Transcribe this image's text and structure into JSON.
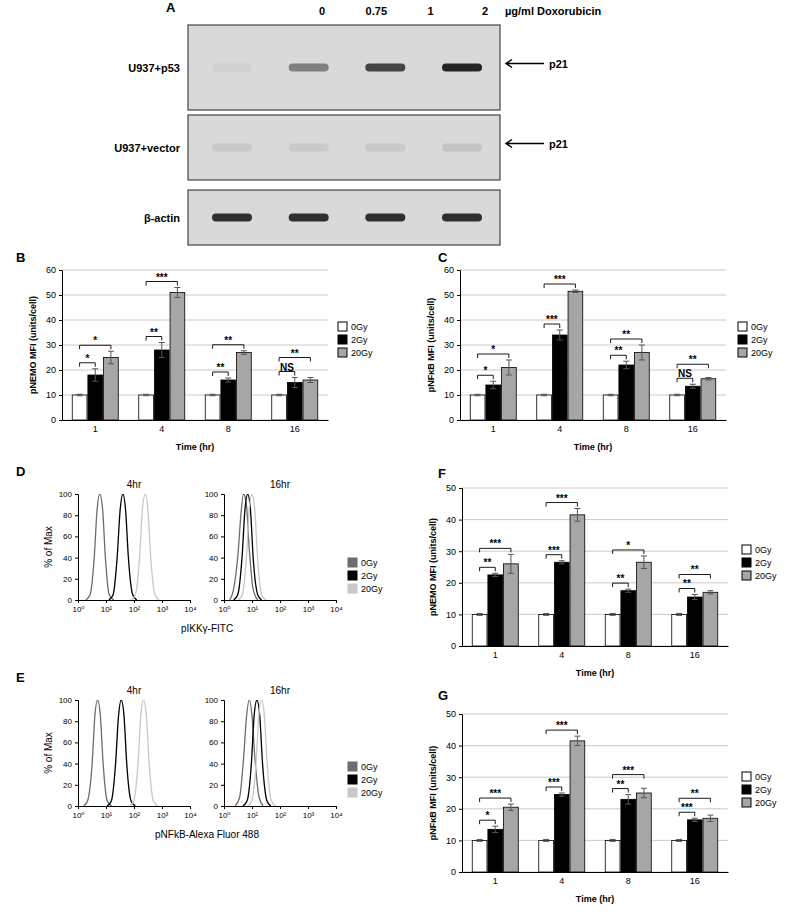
{
  "chart_data": [
    {
      "type": "blot",
      "title": "A",
      "categories": [
        "0",
        "0.75",
        "1",
        "2"
      ],
      "xlabel": "µg/ml Doxorubicin",
      "ylim": [
        0,
        1
      ],
      "series": [
        {
          "name": "U937+p53",
          "values": [
            0.04,
            0.45,
            0.75,
            0.9
          ]
        },
        {
          "name": "U937+vector",
          "values": [
            0.08,
            0.08,
            0.08,
            0.1
          ]
        },
        {
          "name": "β-actin",
          "values": [
            0.85,
            0.85,
            0.85,
            0.85
          ]
        }
      ],
      "annotations": [
        {
          "text": "p21",
          "row": "U937+p53"
        },
        {
          "text": "p21",
          "row": "U937+vector"
        }
      ]
    },
    {
      "type": "bar",
      "title": "B",
      "ylabel": "pNEMO MFI (units/cell)",
      "xlabel": "Time (hr)",
      "categories": [
        "1",
        "4",
        "8",
        "16"
      ],
      "ylim": [
        0,
        60
      ],
      "yticks": [
        0,
        10,
        20,
        30,
        40,
        50,
        60
      ],
      "grid": true,
      "legend": "right",
      "series": [
        {
          "name": "0Gy",
          "color": "#ffffff",
          "values": [
            10,
            10,
            10,
            10
          ],
          "errors": [
            0.3,
            0.3,
            0.3,
            0.3
          ]
        },
        {
          "name": "2Gy",
          "color": "#000000",
          "values": [
            18,
            28,
            16,
            15
          ],
          "errors": [
            2.5,
            3,
            0.8,
            2
          ]
        },
        {
          "name": "20Gy",
          "color": "#a6a6a6",
          "values": [
            25,
            51,
            27,
            16
          ],
          "errors": [
            2.5,
            2,
            0.7,
            1
          ]
        }
      ],
      "annotations": [
        {
          "text": "*",
          "at": "1",
          "between": [
            "0Gy",
            "2Gy"
          ]
        },
        {
          "text": "*",
          "at": "1",
          "between": [
            "0Gy",
            "20Gy"
          ]
        },
        {
          "text": "**",
          "at": "4",
          "between": [
            "0Gy",
            "2Gy"
          ]
        },
        {
          "text": "***",
          "at": "4",
          "between": [
            "0Gy",
            "20Gy"
          ]
        },
        {
          "text": "**",
          "at": "8",
          "between": [
            "0Gy",
            "2Gy"
          ]
        },
        {
          "text": "**",
          "at": "8",
          "between": [
            "0Gy",
            "20Gy"
          ]
        },
        {
          "text": "NS",
          "at": "16",
          "between": [
            "0Gy",
            "2Gy"
          ]
        },
        {
          "text": "**",
          "at": "16",
          "between": [
            "0Gy",
            "20Gy"
          ]
        }
      ]
    },
    {
      "type": "bar",
      "title": "C",
      "ylabel": "pNFκB MFI (units/cell)",
      "xlabel": "Time (hr)",
      "categories": [
        "1",
        "4",
        "8",
        "16"
      ],
      "ylim": [
        0,
        60
      ],
      "yticks": [
        0,
        10,
        20,
        30,
        40,
        50,
        60
      ],
      "grid": true,
      "legend": "right",
      "series": [
        {
          "name": "0Gy",
          "color": "#ffffff",
          "values": [
            10,
            10,
            10,
            10
          ],
          "errors": [
            0.3,
            0.3,
            0.3,
            0.3
          ]
        },
        {
          "name": "2Gy",
          "color": "#000000",
          "values": [
            14,
            34,
            22,
            13.5
          ],
          "errors": [
            1.5,
            2,
            1.5,
            0.8
          ]
        },
        {
          "name": "20Gy",
          "color": "#a6a6a6",
          "values": [
            21,
            51.5,
            27,
            16.5
          ],
          "errors": [
            3,
            0.5,
            3,
            0.5
          ]
        }
      ],
      "annotations": [
        {
          "text": "*",
          "at": "1",
          "between": [
            "0Gy",
            "2Gy"
          ]
        },
        {
          "text": "*",
          "at": "1",
          "between": [
            "0Gy",
            "20Gy"
          ]
        },
        {
          "text": "***",
          "at": "4",
          "between": [
            "0Gy",
            "2Gy"
          ]
        },
        {
          "text": "***",
          "at": "4",
          "between": [
            "0Gy",
            "20Gy"
          ]
        },
        {
          "text": "**",
          "at": "8",
          "between": [
            "0Gy",
            "2Gy"
          ]
        },
        {
          "text": "**",
          "at": "8",
          "between": [
            "0Gy",
            "20Gy"
          ]
        },
        {
          "text": "NS",
          "at": "16",
          "between": [
            "0Gy",
            "2Gy"
          ]
        },
        {
          "text": "**",
          "at": "16",
          "between": [
            "0Gy",
            "20Gy"
          ]
        }
      ]
    },
    {
      "type": "line",
      "title": "D",
      "xlabel": "pIKKγ-FITC",
      "ylabel": "% of Max",
      "log": "x",
      "xlim": [
        1,
        10000
      ],
      "xticks": [
        {
          "value": 1,
          "label": "10⁰"
        },
        {
          "value": 10,
          "label": "10¹"
        },
        {
          "value": 100,
          "label": "10²"
        },
        {
          "value": 1000,
          "label": "10³"
        },
        {
          "value": 10000,
          "label": "10⁴"
        }
      ],
      "ylim": [
        0,
        100
      ],
      "yticks": [
        0,
        20,
        40,
        60,
        80,
        100
      ],
      "legend": "right",
      "series": [
        {
          "name": "0Gy",
          "color": "#6d6d6d"
        },
        {
          "name": "2Gy",
          "color": "#000000"
        },
        {
          "name": "20Gy",
          "color": "#c8c8c8"
        }
      ],
      "subplots": [
        {
          "subtitle": "4hr",
          "series": [
            {
              "x": [
                1.9,
                2.7,
                3.8,
                4.8,
                6,
                7.6,
                9.5,
                13,
                19
              ],
              "values": [
                0,
                5,
                40,
                85,
                100,
                85,
                40,
                5,
                0
              ]
            },
            {
              "x": [
                12.6,
                17.9,
                25,
                32,
                40,
                50,
                63,
                90,
                126
              ],
              "values": [
                0,
                5,
                40,
                85,
                100,
                85,
                40,
                5,
                0
              ]
            },
            {
              "x": [
                79,
                112,
                158,
                199,
                250,
                315,
                397,
                560,
                790
              ],
              "values": [
                0,
                5,
                40,
                85,
                100,
                85,
                40,
                5,
                0
              ]
            }
          ]
        },
        {
          "subtitle": "16hr",
          "series": [
            {
              "x": [
                1.6,
                2.2,
                3.2,
                4,
                5,
                6.3,
                7.9,
                11,
                16
              ],
              "values": [
                0,
                10,
                45,
                80,
                100,
                90,
                50,
                10,
                0
              ]
            },
            {
              "x": [
                2.2,
                3.1,
                4.4,
                5.6,
                7,
                8.8,
                11,
                16,
                22
              ],
              "values": [
                0,
                5,
                40,
                85,
                100,
                85,
                40,
                5,
                0
              ]
            },
            {
              "x": [
                3.2,
                4.5,
                6.3,
                7.9,
                10,
                12.6,
                15.8,
                22,
                32
              ],
              "values": [
                0,
                5,
                40,
                85,
                100,
                85,
                40,
                5,
                0
              ]
            }
          ]
        }
      ]
    },
    {
      "type": "line",
      "title": "E",
      "xlabel": "pNFkB-Alexa Fluor 488",
      "ylabel": "% of Max",
      "log": "x",
      "xlim": [
        1,
        10000
      ],
      "xticks": [
        {
          "value": 1,
          "label": "10⁰"
        },
        {
          "value": 10,
          "label": "10¹"
        },
        {
          "value": 100,
          "label": "10²"
        },
        {
          "value": 1000,
          "label": "10³"
        },
        {
          "value": 10000,
          "label": "10⁴"
        }
      ],
      "ylim": [
        0,
        100
      ],
      "yticks": [
        0,
        20,
        40,
        60,
        80,
        100
      ],
      "legend": "right",
      "series": [
        {
          "name": "0Gy",
          "color": "#6d6d6d"
        },
        {
          "name": "2Gy",
          "color": "#000000"
        },
        {
          "name": "20Gy",
          "color": "#c8c8c8"
        }
      ],
      "subplots": [
        {
          "subtitle": "4hr",
          "series": [
            {
              "x": [
                1.6,
                2.2,
                3.2,
                4,
                5,
                6.3,
                7.9,
                11,
                16
              ],
              "values": [
                0,
                5,
                40,
                85,
                100,
                85,
                40,
                5,
                0
              ]
            },
            {
              "x": [
                11,
                15.6,
                22,
                28,
                35,
                44,
                55,
                78,
                111
              ],
              "values": [
                0,
                5,
                40,
                85,
                100,
                85,
                40,
                5,
                0
              ]
            },
            {
              "x": [
                70,
                98,
                139,
                175,
                220,
                277,
                348,
                490,
                696
              ],
              "values": [
                0,
                5,
                40,
                85,
                100,
                85,
                40,
                5,
                0
              ]
            }
          ]
        },
        {
          "subtitle": "16hr",
          "series": [
            {
              "x": [
                2.5,
                3.6,
                5,
                6.4,
                8,
                10,
                12.7,
                18,
                25
              ],
              "values": [
                0,
                8,
                45,
                85,
                100,
                85,
                45,
                8,
                0
              ]
            },
            {
              "x": [
                4.7,
                6.7,
                9.5,
                11.9,
                15,
                18.9,
                23.8,
                34,
                47
              ],
              "values": [
                0,
                5,
                40,
                85,
                100,
                85,
                40,
                5,
                0
              ]
            },
            {
              "x": [
                7,
                9.8,
                13.9,
                17.5,
                22,
                27.7,
                34.8,
                49,
                70
              ],
              "values": [
                0,
                5,
                40,
                85,
                100,
                85,
                40,
                5,
                0
              ]
            }
          ]
        }
      ]
    },
    {
      "type": "bar",
      "title": "F",
      "ylabel": "pNEMO MFI (units/cell)",
      "xlabel": "Time (hr)",
      "categories": [
        "1",
        "4",
        "8",
        "16"
      ],
      "ylim": [
        0,
        50
      ],
      "yticks": [
        0,
        10,
        20,
        30,
        40,
        50
      ],
      "grid": true,
      "legend": "right",
      "series": [
        {
          "name": "0Gy",
          "color": "#ffffff",
          "values": [
            10,
            10,
            10,
            10
          ],
          "errors": [
            0.3,
            0.3,
            0.3,
            0.3
          ]
        },
        {
          "name": "2Gy",
          "color": "#000000",
          "values": [
            22.5,
            26.5,
            17.5,
            15.5
          ],
          "errors": [
            0.5,
            0.5,
            0.5,
            0.8
          ]
        },
        {
          "name": "20Gy",
          "color": "#a6a6a6",
          "values": [
            26,
            41.5,
            26.5,
            17
          ],
          "errors": [
            3,
            2,
            2,
            0.5
          ]
        }
      ],
      "annotations": [
        {
          "text": "**",
          "at": "1",
          "between": [
            "0Gy",
            "2Gy"
          ]
        },
        {
          "text": "***",
          "at": "1",
          "between": [
            "0Gy",
            "20Gy"
          ]
        },
        {
          "text": "***",
          "at": "4",
          "between": [
            "0Gy",
            "2Gy"
          ]
        },
        {
          "text": "***",
          "at": "4",
          "between": [
            "0Gy",
            "20Gy"
          ]
        },
        {
          "text": "**",
          "at": "8",
          "between": [
            "0Gy",
            "2Gy"
          ]
        },
        {
          "text": "*",
          "at": "8",
          "between": [
            "0Gy",
            "20Gy"
          ]
        },
        {
          "text": "**",
          "at": "16",
          "between": [
            "0Gy",
            "2Gy"
          ]
        },
        {
          "text": "**",
          "at": "16",
          "between": [
            "0Gy",
            "20Gy"
          ]
        }
      ]
    },
    {
      "type": "bar",
      "title": "G",
      "ylabel": "pNFκB MFI (units/cell)",
      "xlabel": "Time (hr)",
      "categories": [
        "1",
        "4",
        "8",
        "16"
      ],
      "ylim": [
        0,
        50
      ],
      "yticks": [
        0,
        10,
        20,
        30,
        40,
        50
      ],
      "grid": true,
      "legend": "right",
      "series": [
        {
          "name": "0Gy",
          "color": "#ffffff",
          "values": [
            10,
            10,
            10,
            10
          ],
          "errors": [
            0.3,
            0.3,
            0.3,
            0.3
          ]
        },
        {
          "name": "2Gy",
          "color": "#000000",
          "values": [
            13.5,
            24.5,
            23,
            16.5
          ],
          "errors": [
            1,
            0.5,
            1.5,
            0.5
          ]
        },
        {
          "name": "20Gy",
          "color": "#a6a6a6",
          "values": [
            20.5,
            41.5,
            25,
            17
          ],
          "errors": [
            1,
            1.5,
            1.5,
            1
          ]
        }
      ],
      "annotations": [
        {
          "text": "*",
          "at": "1",
          "between": [
            "0Gy",
            "2Gy"
          ]
        },
        {
          "text": "***",
          "at": "1",
          "between": [
            "0Gy",
            "20Gy"
          ]
        },
        {
          "text": "***",
          "at": "4",
          "between": [
            "0Gy",
            "2Gy"
          ]
        },
        {
          "text": "***",
          "at": "4",
          "between": [
            "0Gy",
            "20Gy"
          ]
        },
        {
          "text": "**",
          "at": "8",
          "between": [
            "0Gy",
            "2Gy"
          ]
        },
        {
          "text": "***",
          "at": "8",
          "between": [
            "0Gy",
            "20Gy"
          ]
        },
        {
          "text": "***",
          "at": "16",
          "between": [
            "0Gy",
            "2Gy"
          ]
        },
        {
          "text": "**",
          "at": "16",
          "between": [
            "0Gy",
            "20Gy"
          ]
        }
      ]
    }
  ]
}
